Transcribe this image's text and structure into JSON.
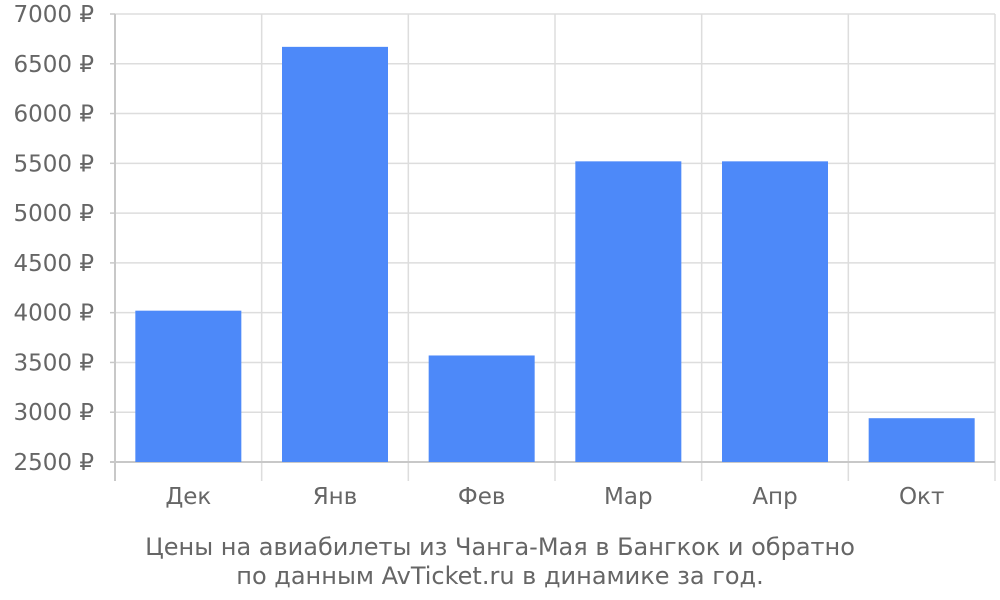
{
  "colors": {
    "bar": "#4d89f9",
    "grid": "#dddddd",
    "axis": "#c8c8c8",
    "text": "#666666"
  },
  "chart_data": {
    "type": "bar",
    "categories": [
      "Дек",
      "Янв",
      "Фев",
      "Мар",
      "Апр",
      "Окт"
    ],
    "values": [
      4020,
      6670,
      3570,
      5520,
      5520,
      2940
    ],
    "ylim": [
      2500,
      7000
    ],
    "yticks": [
      2500,
      3000,
      3500,
      4000,
      4500,
      5000,
      5500,
      6000,
      6500,
      7000
    ],
    "ytick_labels": [
      "2500 ₽",
      "3000 ₽",
      "3500 ₽",
      "4000 ₽",
      "4500 ₽",
      "5000 ₽",
      "5500 ₽",
      "6000 ₽",
      "6500 ₽",
      "7000 ₽"
    ],
    "grid": true,
    "legend": "none",
    "caption_line_1": "Цены на авиабилеты из Чанга-Мая в Бангкок и обратно",
    "caption_line_2": "по данным AvTicket.ru в динамике за год."
  }
}
